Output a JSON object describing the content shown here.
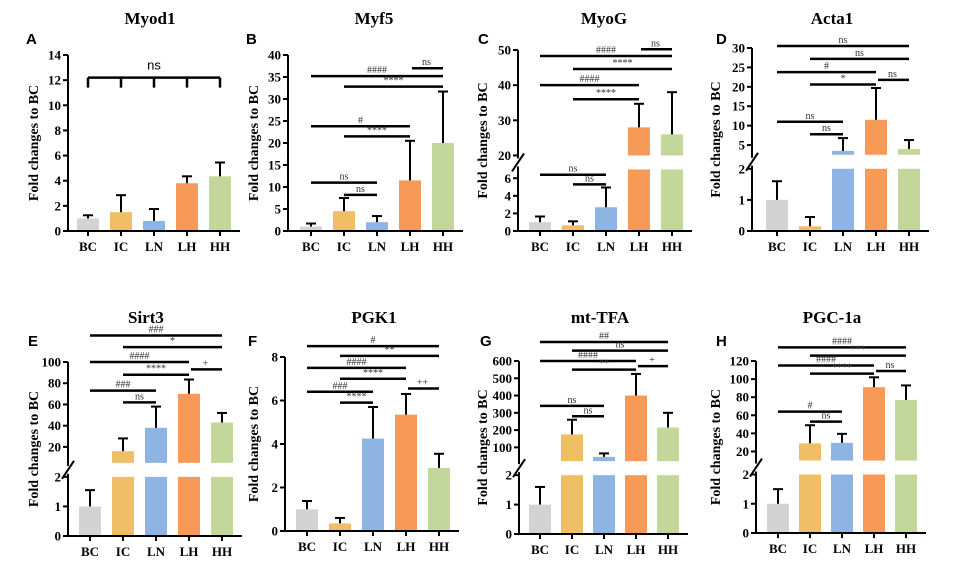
{
  "colors": {
    "BC": "#d3d3d3",
    "IC": "#f0be64",
    "LN": "#8db4e2",
    "LH": "#f79a58",
    "HH": "#c4d79b"
  },
  "chart_data": [
    {
      "panel": "A",
      "type": "bar",
      "title": "Myod1",
      "ylabel": "Fold changes to BC",
      "categories": [
        "BC",
        "IC",
        "LN",
        "LH",
        "HH"
      ],
      "values": [
        1.0,
        1.5,
        0.8,
        3.8,
        4.35
      ],
      "errors": [
        0.25,
        1.35,
        0.95,
        0.55,
        1.1
      ],
      "ylim": [
        0,
        14
      ],
      "yticks": [
        0,
        2,
        4,
        6,
        8,
        10,
        12,
        14
      ],
      "breaks": null,
      "significance": [
        {
          "type": "bracket",
          "groups": [
            "BC",
            "IC",
            "LN",
            "LH",
            "HH"
          ],
          "label": "ns",
          "y": 12.2
        }
      ]
    },
    {
      "panel": "B",
      "type": "bar",
      "title": "Myf5",
      "ylabel": "Fold changes to BC",
      "categories": [
        "BC",
        "IC",
        "LN",
        "LH",
        "HH"
      ],
      "values": [
        1.0,
        4.5,
        2.0,
        11.5,
        20.0
      ],
      "errors": [
        0.7,
        3.0,
        1.4,
        9.0,
        11.7
      ],
      "ylim": [
        0,
        40
      ],
      "yticks": [
        0,
        5,
        10,
        15,
        20,
        25,
        30,
        35,
        40
      ],
      "breaks": null,
      "significance": [
        {
          "from": "LH",
          "to": "HH",
          "label": "ns",
          "y": 37
        },
        {
          "from": "BC",
          "to": "HH",
          "label": "####",
          "y": 35.2
        },
        {
          "from": "IC",
          "to": "HH",
          "label": "****",
          "y": 32.8
        },
        {
          "from": "BC",
          "to": "LH",
          "label": "#",
          "y": 23.8
        },
        {
          "from": "IC",
          "to": "LH",
          "label": "****",
          "y": 21.5
        },
        {
          "from": "BC",
          "to": "LN",
          "label": "ns",
          "y": 11.0
        },
        {
          "from": "IC",
          "to": "LN",
          "label": "ns",
          "y": 8.2
        }
      ]
    },
    {
      "panel": "C",
      "type": "bar",
      "title": "MyoG",
      "ylabel": "Fold changes to BC",
      "categories": [
        "BC",
        "IC",
        "LN",
        "LH",
        "HH"
      ],
      "values": [
        1.0,
        0.65,
        2.7,
        28.0,
        26.0
      ],
      "errors": [
        0.65,
        0.45,
        2.25,
        6.7,
        12.0
      ],
      "breaks": {
        "lower": {
          "range": [
            0,
            7
          ],
          "ticks": [
            0,
            2,
            4,
            6
          ]
        },
        "upper": {
          "range": [
            20,
            50
          ],
          "ticks": [
            20,
            30,
            40,
            50
          ]
        }
      },
      "significance": [
        {
          "from": "LH",
          "to": "HH",
          "label": "ns",
          "y": 50.2
        },
        {
          "from": "BC",
          "to": "HH",
          "label": "####",
          "y": 48.3
        },
        {
          "from": "IC",
          "to": "HH",
          "label": "****",
          "y": 44.6
        },
        {
          "from": "BC",
          "to": "LH",
          "label": "####",
          "y": 40.0
        },
        {
          "from": "IC",
          "to": "LH",
          "label": "****",
          "y": 36.0
        },
        {
          "from": "BC",
          "to": "LN",
          "label": "ns",
          "y": 6.4
        },
        {
          "from": "IC",
          "to": "LN",
          "label": "ns",
          "y": 5.3
        }
      ]
    },
    {
      "panel": "D",
      "type": "bar",
      "title": "Acta1",
      "ylabel": "Fold changes to BC",
      "categories": [
        "BC",
        "IC",
        "LN",
        "LH",
        "HH"
      ],
      "values": [
        1.0,
        0.15,
        3.5,
        11.5,
        4.0
      ],
      "errors": [
        0.6,
        0.3,
        3.3,
        8.2,
        2.3
      ],
      "breaks": {
        "lower": {
          "range": [
            0,
            2
          ],
          "ticks": [
            0,
            1,
            2
          ]
        },
        "upper": {
          "range": [
            2.5,
            30
          ],
          "ticks": [
            5,
            10,
            15,
            20,
            25,
            30
          ]
        }
      },
      "significance": [
        {
          "from": "BC",
          "to": "HH",
          "label": "ns",
          "y": 30.5
        },
        {
          "from": "IC",
          "to": "HH",
          "label": "ns",
          "y": 27.2
        },
        {
          "from": "BC",
          "to": "LH",
          "label": "#",
          "y": 23.8
        },
        {
          "from": "LH",
          "to": "HH",
          "label": "ns",
          "y": 21.8
        },
        {
          "from": "IC",
          "to": "LH",
          "label": "*",
          "y": 20.6
        },
        {
          "from": "BC",
          "to": "LN",
          "label": "ns",
          "y": 11.0
        },
        {
          "from": "IC",
          "to": "LN",
          "label": "ns",
          "y": 7.8
        }
      ]
    },
    {
      "panel": "E",
      "type": "bar",
      "title": "Sirt3",
      "ylabel": "Fold changes to BC",
      "categories": [
        "BC",
        "IC",
        "LN",
        "LH",
        "HH"
      ],
      "values": [
        1.0,
        16.0,
        38.0,
        70.0,
        43.0
      ],
      "errors": [
        0.55,
        12.0,
        20.0,
        13.5,
        9.0
      ],
      "breaks": {
        "lower": {
          "range": [
            0,
            2
          ],
          "ticks": [
            0,
            1,
            2
          ]
        },
        "upper": {
          "range": [
            5,
            100
          ],
          "ticks": [
            20,
            40,
            60,
            80,
            100
          ]
        }
      },
      "significance": [
        {
          "from": "BC",
          "to": "HH",
          "label": "###",
          "y": 125
        },
        {
          "from": "IC",
          "to": "HH",
          "label": "*",
          "y": 114
        },
        {
          "from": "BC",
          "to": "LH",
          "label": "####",
          "y": 100
        },
        {
          "from": "LH",
          "to": "HH",
          "label": "+",
          "y": 93
        },
        {
          "from": "IC",
          "to": "LH",
          "label": "****",
          "y": 88
        },
        {
          "from": "BC",
          "to": "LN",
          "label": "###",
          "y": 73
        },
        {
          "from": "IC",
          "to": "LN",
          "label": "ns",
          "y": 62
        }
      ]
    },
    {
      "panel": "F",
      "type": "bar",
      "title": "PGK1",
      "ylabel": "Fold changes to BC",
      "categories": [
        "BC",
        "IC",
        "LN",
        "LH",
        "HH"
      ],
      "values": [
        1.0,
        0.35,
        4.25,
        5.35,
        2.9
      ],
      "errors": [
        0.38,
        0.25,
        1.45,
        0.95,
        0.65
      ],
      "ylim": [
        0,
        8
      ],
      "yticks": [
        0,
        2,
        4,
        6,
        8
      ],
      "breaks": null,
      "significance": [
        {
          "from": "BC",
          "to": "HH",
          "label": "#",
          "y": 8.5
        },
        {
          "from": "IC",
          "to": "HH",
          "label": "**",
          "y": 8.05
        },
        {
          "from": "BC",
          "to": "LH",
          "label": "####",
          "y": 7.5
        },
        {
          "from": "IC",
          "to": "LH",
          "label": "****",
          "y": 7.0
        },
        {
          "from": "LH",
          "to": "HH",
          "label": "++",
          "y": 6.55
        },
        {
          "from": "BC",
          "to": "LN",
          "label": "###",
          "y": 6.4
        },
        {
          "from": "IC",
          "to": "LN",
          "label": "****",
          "y": 5.9
        }
      ]
    },
    {
      "panel": "G",
      "type": "bar",
      "title": "mt-TFA",
      "ylabel": "Fold changes to BC",
      "categories": [
        "BC",
        "IC",
        "LN",
        "LH",
        "HH"
      ],
      "values": [
        1.0,
        175,
        45,
        400,
        215
      ],
      "errors": [
        0.6,
        85,
        20,
        125,
        85
      ],
      "breaks": {
        "lower": {
          "range": [
            0,
            2
          ],
          "ticks": [
            0,
            1,
            2
          ]
        },
        "upper": {
          "range": [
            20,
            600
          ],
          "ticks": [
            100,
            200,
            300,
            400,
            500,
            600
          ]
        }
      },
      "significance": [
        {
          "from": "BC",
          "to": "HH",
          "label": "##",
          "y": 710
        },
        {
          "from": "IC",
          "to": "HH",
          "label": "ns",
          "y": 660
        },
        {
          "from": "BC",
          "to": "LH",
          "label": "####",
          "y": 600
        },
        {
          "from": "LH",
          "to": "HH",
          "label": "+",
          "y": 570
        },
        {
          "from": "IC",
          "to": "LH",
          "label": "**",
          "y": 550
        },
        {
          "from": "BC",
          "to": "LN",
          "label": "ns",
          "y": 340
        },
        {
          "from": "IC",
          "to": "LN",
          "label": "ns",
          "y": 280
        }
      ]
    },
    {
      "panel": "H",
      "type": "bar",
      "title": "PGC-1a",
      "ylabel": "Fold changes to BC",
      "categories": [
        "BC",
        "IC",
        "LN",
        "LH",
        "HH"
      ],
      "values": [
        1.0,
        29,
        29.5,
        91,
        77
      ],
      "errors": [
        0.5,
        20,
        10,
        11,
        16
      ],
      "breaks": {
        "lower": {
          "range": [
            0,
            2
          ],
          "ticks": [
            0,
            1,
            2
          ]
        },
        "upper": {
          "range": [
            10,
            120
          ],
          "ticks": [
            20,
            40,
            60,
            80,
            100,
            120
          ]
        }
      },
      "significance": [
        {
          "from": "BC",
          "to": "HH",
          "label": "####",
          "y": 135
        },
        {
          "from": "IC",
          "to": "HH",
          "label": "***",
          "y": 126
        },
        {
          "from": "BC",
          "to": "LH",
          "label": "####",
          "y": 115
        },
        {
          "from": "LH",
          "to": "HH",
          "label": "ns",
          "y": 109
        },
        {
          "from": "IC",
          "to": "LH",
          "label": "****",
          "y": 106
        },
        {
          "from": "BC",
          "to": "LN",
          "label": "#",
          "y": 64
        },
        {
          "from": "IC",
          "to": "LN",
          "label": "ns",
          "y": 53
        }
      ]
    }
  ]
}
